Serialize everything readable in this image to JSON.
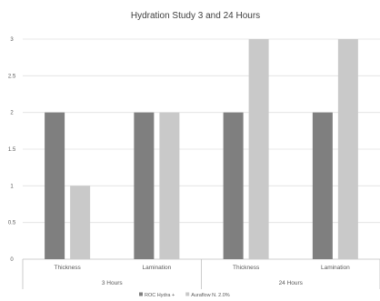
{
  "chart_data": {
    "type": "bar",
    "title": "Hydration Study 3 and 24 Hours",
    "xlabel": "",
    "ylabel": "",
    "ylim": [
      0,
      3
    ],
    "y_ticks": [
      "0",
      "0.5",
      "1",
      "1.5",
      "2",
      "2.5",
      "3"
    ],
    "y_tick_values": [
      0,
      0.5,
      1,
      1.5,
      2,
      2.5,
      3
    ],
    "grid": true,
    "legend_position": "bottom",
    "groups": [
      "3 Hours",
      "24 Hours"
    ],
    "categories": [
      "Thickness",
      "Lamination",
      "Thickness",
      "Lamination"
    ],
    "category_group": [
      0,
      0,
      1,
      1
    ],
    "series": [
      {
        "name": "ROC Hydra +",
        "color": "#7f7f7f",
        "values": [
          2,
          2,
          2,
          2
        ]
      },
      {
        "name": "Auraflow N. 2.0%",
        "color": "#c9c9c9",
        "values": [
          1,
          2,
          3,
          3
        ]
      }
    ]
  }
}
